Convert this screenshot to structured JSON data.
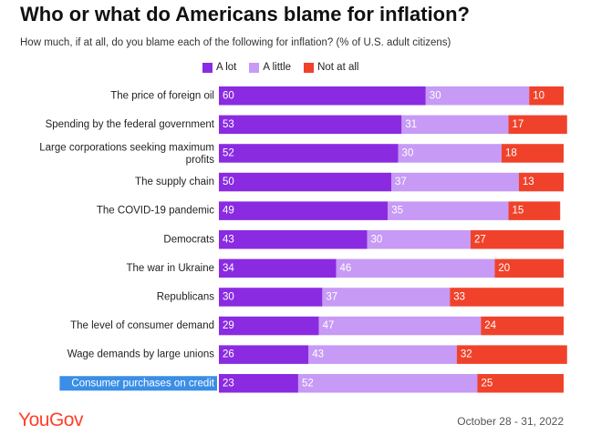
{
  "title": "Who or what do Americans blame for inflation?",
  "subtitle": "How much, if at all, do you blame each of the following for inflation? (% of U.S. adult citizens)",
  "legend": [
    {
      "label": "A lot",
      "color": "#8a2be2"
    },
    {
      "label": "A little",
      "color": "#c79af5"
    },
    {
      "label": "Not at all",
      "color": "#f0422b"
    }
  ],
  "chart_data": {
    "type": "bar",
    "orientation": "horizontal",
    "stacked": true,
    "title": "Who or what do Americans blame for inflation?",
    "subtitle": "How much, if at all, do you blame each of the following for inflation? (% of U.S. adult citizens)",
    "unit": "% of U.S. adult citizens",
    "categories": [
      "The price of foreign oil",
      "Spending by the federal government",
      "Large corporations seeking maximum profits",
      "The supply chain",
      "The COVID-19 pandemic",
      "Democrats",
      "The war in Ukraine",
      "Republicans",
      "The level of consumer demand",
      "Wage demands by large unions",
      "Consumer purchases on credit"
    ],
    "series": [
      {
        "name": "A lot",
        "color": "#8a2be2",
        "values": [
          60,
          53,
          52,
          50,
          49,
          43,
          34,
          30,
          29,
          26,
          23
        ]
      },
      {
        "name": "A little",
        "color": "#c79af5",
        "values": [
          30,
          31,
          30,
          37,
          35,
          30,
          46,
          37,
          47,
          43,
          52
        ]
      },
      {
        "name": "Not at all",
        "color": "#f0422b",
        "values": [
          10,
          17,
          18,
          13,
          15,
          27,
          20,
          33,
          24,
          32,
          25
        ]
      }
    ],
    "xlim": [
      0,
      100
    ],
    "legend_position": "top",
    "highlighted_category": "Consumer purchases on credit"
  },
  "footer": {
    "brand": "YouGov",
    "date": "October 28 - 31, 2022"
  }
}
